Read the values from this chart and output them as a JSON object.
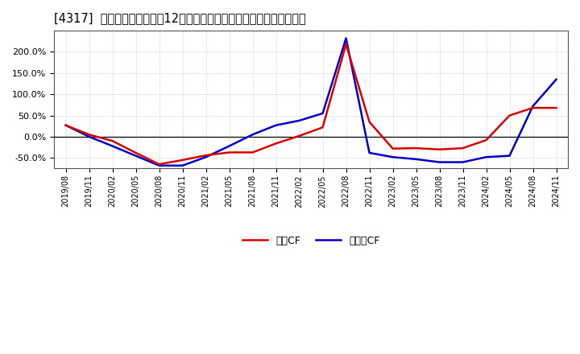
{
  "title": "[4317]  キャッシュフローの12か月移動合計の対前年同期増減率の推移",
  "background_color": "#ffffff",
  "plot_bg_color": "#ffffff",
  "grid_color": "#aaaaaa",
  "legend_labels": [
    "営業CF",
    "フリーCF"
  ],
  "line_colors": [
    "#dd0000",
    "#0000cc"
  ],
  "x_labels": [
    "2019/08",
    "2019/11",
    "2020/02",
    "2020/05",
    "2020/08",
    "2020/11",
    "2021/02",
    "2021/05",
    "2021/08",
    "2021/11",
    "2022/02",
    "2022/05",
    "2022/08",
    "2022/11",
    "2023/02",
    "2023/05",
    "2023/08",
    "2023/11",
    "2024/02",
    "2024/05",
    "2024/08",
    "2024/11"
  ],
  "eigyo_cf": [
    0.27,
    0.05,
    -0.1,
    -0.38,
    -0.65,
    -0.55,
    -0.44,
    -0.37,
    -0.37,
    -0.16,
    0.02,
    0.22,
    2.18,
    0.35,
    -0.28,
    -0.27,
    -0.3,
    -0.27,
    -0.08,
    0.5,
    0.68,
    0.68
  ],
  "free_cf": [
    0.27,
    0.0,
    -0.22,
    -0.45,
    -0.68,
    -0.68,
    -0.48,
    -0.22,
    0.05,
    0.27,
    0.38,
    0.55,
    2.32,
    -0.38,
    -0.48,
    -0.53,
    -0.6,
    -0.6,
    -0.48,
    -0.45,
    0.72,
    1.35
  ],
  "ylim": [
    -0.75,
    2.5
  ],
  "yticks": [
    -0.5,
    0.0,
    0.5,
    1.0,
    1.5,
    2.0
  ]
}
